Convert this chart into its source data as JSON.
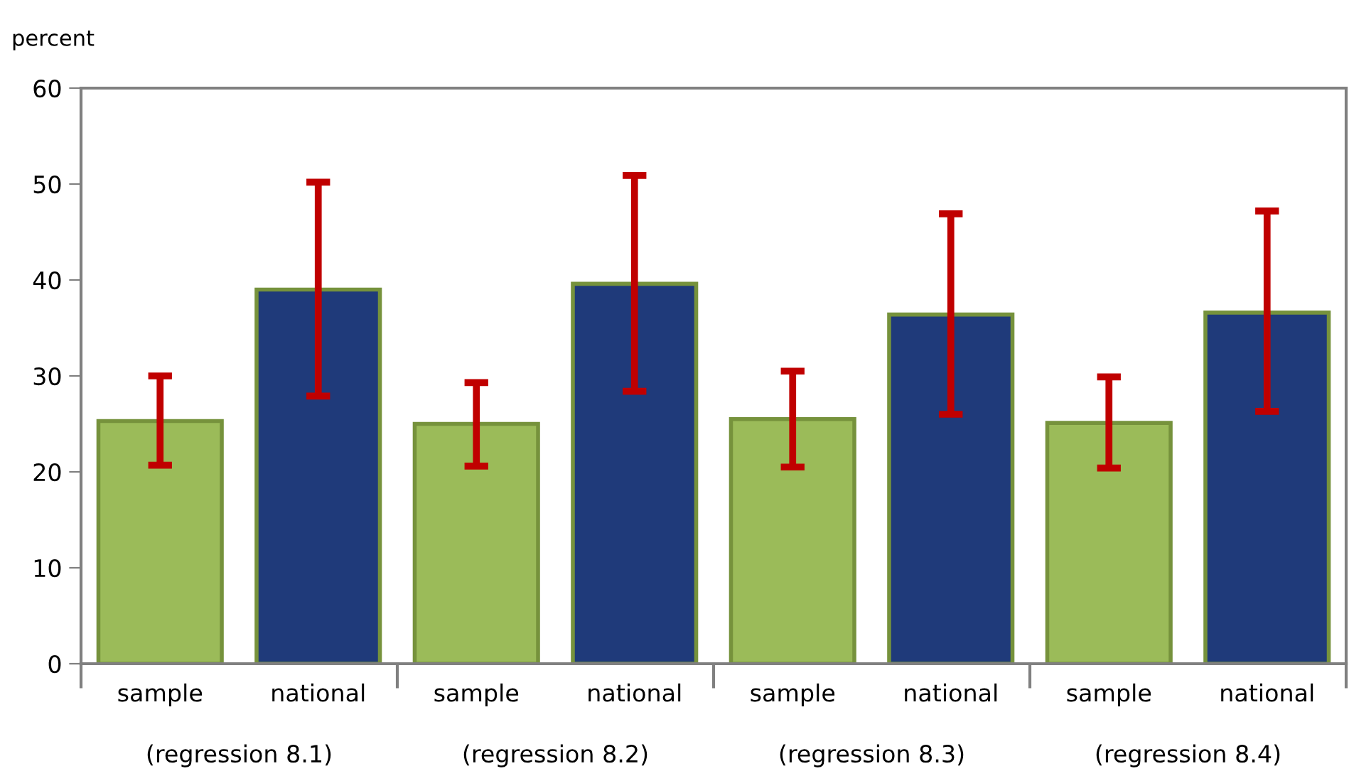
{
  "chart_data": {
    "type": "bar",
    "ylabel": "percent",
    "categories": [
      "sample",
      "national",
      "sample",
      "national",
      "sample",
      "national",
      "sample",
      "national"
    ],
    "values": [
      25.3,
      39.0,
      25.0,
      39.6,
      25.5,
      36.4,
      25.1,
      36.6
    ],
    "colors": [
      "#9bbb59",
      "#1f3a7a",
      "#9bbb59",
      "#1f3a7a",
      "#9bbb59",
      "#1f3a7a",
      "#9bbb59",
      "#1f3a7a"
    ],
    "errors": [
      [
        20.7,
        30.0
      ],
      [
        27.9,
        50.2
      ],
      [
        20.6,
        29.3
      ],
      [
        28.4,
        50.9
      ],
      [
        20.5,
        30.5
      ],
      [
        26.0,
        46.9
      ],
      [
        20.4,
        29.9
      ],
      [
        26.3,
        47.2
      ]
    ],
    "annotations": [
      "(regression 8.1)",
      "(regression 8.2)",
      "(regression 8.3)",
      "(regression 8.4)"
    ],
    "ylim": [
      0,
      60
    ],
    "yticks": [
      0,
      10,
      20,
      30,
      40,
      50,
      60
    ],
    "grid": false,
    "legend": false
  }
}
